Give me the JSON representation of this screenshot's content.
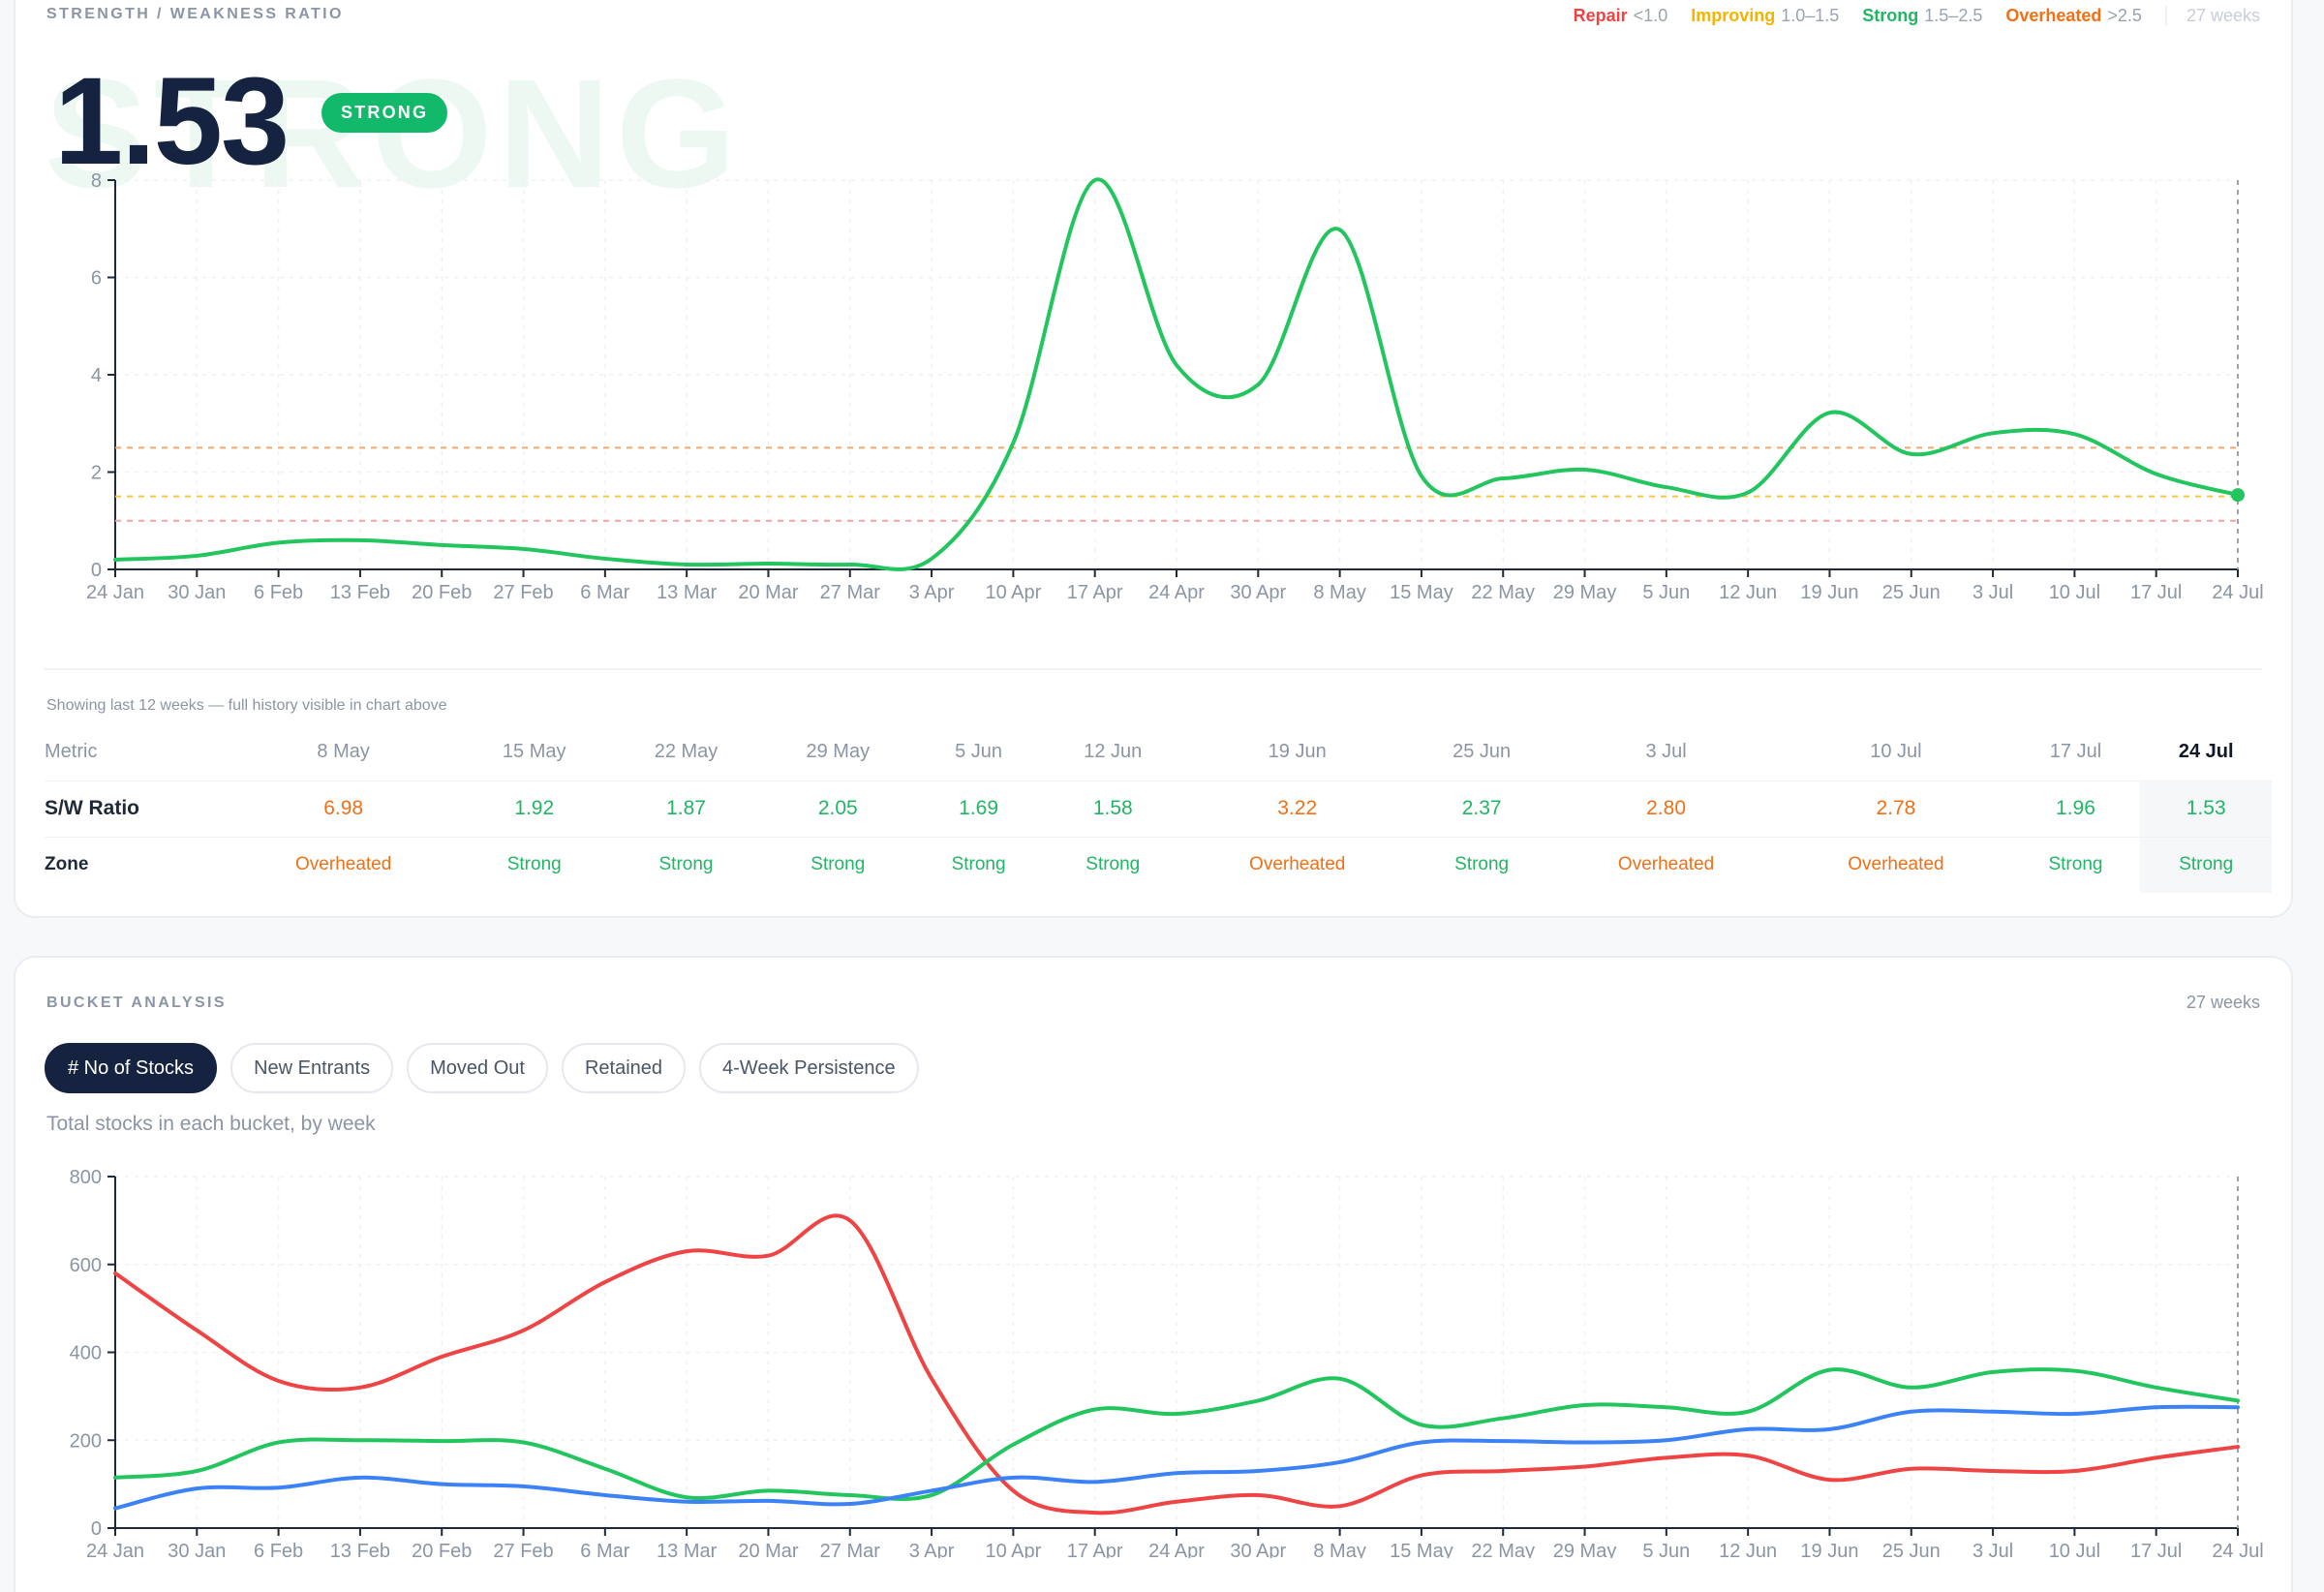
{
  "ratio_card": {
    "section_label": "STRENGTH / WEAKNESS RATIO",
    "legend": [
      {
        "name": "Repair",
        "range": "<1.0",
        "color": "#ef4444"
      },
      {
        "name": "Improving",
        "range": "1.0–1.5",
        "color": "#f5b301"
      },
      {
        "name": "Strong",
        "range": "1.5–2.5",
        "color": "#22b566"
      },
      {
        "name": "Overheated",
        "range": ">2.5",
        "color": "#f07017"
      }
    ],
    "weeks_label": "27 weeks",
    "ghost_text": "STRONG",
    "value": "1.53",
    "badge": "STRONG",
    "history_note": "Showing last 12 weeks — full history visible in chart above",
    "table": {
      "metric_header": "Metric",
      "ratio_label": "S/W Ratio",
      "zone_label": "Zone",
      "columns": [
        {
          "week": "8 May",
          "ratio": "6.98",
          "zone": "Overheated"
        },
        {
          "week": "15 May",
          "ratio": "1.92",
          "zone": "Strong"
        },
        {
          "week": "22 May",
          "ratio": "1.87",
          "zone": "Strong"
        },
        {
          "week": "29 May",
          "ratio": "2.05",
          "zone": "Strong"
        },
        {
          "week": "5 Jun",
          "ratio": "1.69",
          "zone": "Strong"
        },
        {
          "week": "12 Jun",
          "ratio": "1.58",
          "zone": "Strong"
        },
        {
          "week": "19 Jun",
          "ratio": "3.22",
          "zone": "Overheated"
        },
        {
          "week": "25 Jun",
          "ratio": "2.37",
          "zone": "Strong"
        },
        {
          "week": "3 Jul",
          "ratio": "2.80",
          "zone": "Overheated"
        },
        {
          "week": "10 Jul",
          "ratio": "2.78",
          "zone": "Overheated"
        },
        {
          "week": "17 Jul",
          "ratio": "1.96",
          "zone": "Strong"
        },
        {
          "week": "24 Jul",
          "ratio": "1.53",
          "zone": "Strong"
        }
      ]
    }
  },
  "bucket_card": {
    "section_label": "BUCKET ANALYSIS",
    "weeks_label": "27 weeks",
    "tabs": [
      "# No of Stocks",
      "New Entrants",
      "Moved Out",
      "Retained",
      "4-Week Persistence"
    ],
    "active_tab": "# No of Stocks",
    "subtitle": "Total stocks in each bucket, by week"
  },
  "chart_data": [
    {
      "type": "line",
      "title": "",
      "xlabel": "",
      "ylabel": "",
      "ylim": [
        0,
        8
      ],
      "yticks": [
        0,
        2,
        4,
        6,
        8
      ],
      "grid": true,
      "x": [
        "24 Jan",
        "30 Jan",
        "6 Feb",
        "13 Feb",
        "20 Feb",
        "27 Feb",
        "6 Mar",
        "13 Mar",
        "20 Mar",
        "27 Mar",
        "3 Apr",
        "10 Apr",
        "17 Apr",
        "24 Apr",
        "30 Apr",
        "8 May",
        "15 May",
        "22 May",
        "29 May",
        "5 Jun",
        "12 Jun",
        "19 Jun",
        "25 Jun",
        "3 Jul",
        "10 Jul",
        "17 Jul",
        "24 Jul"
      ],
      "series": [
        {
          "color": "#22c55e",
          "values": [
            0.2,
            0.28,
            0.55,
            0.6,
            0.5,
            0.42,
            0.22,
            0.1,
            0.12,
            0.1,
            0.22,
            2.6,
            8.0,
            4.2,
            3.8,
            6.98,
            1.92,
            1.87,
            2.05,
            1.69,
            1.58,
            3.22,
            2.37,
            2.8,
            2.78,
            1.96,
            1.53
          ]
        }
      ],
      "thresholds": [
        {
          "value": 1.0,
          "color": "#f4a3a3"
        },
        {
          "value": 1.5,
          "color": "#f5c843"
        },
        {
          "value": 2.5,
          "color": "#f5a86b"
        }
      ]
    },
    {
      "type": "line",
      "title": "",
      "xlabel": "",
      "ylabel": "",
      "ylim": [
        0,
        800
      ],
      "yticks": [
        0,
        200,
        400,
        600,
        800
      ],
      "grid": true,
      "x": [
        "24 Jan",
        "30 Jan",
        "6 Feb",
        "13 Feb",
        "20 Feb",
        "27 Feb",
        "6 Mar",
        "13 Mar",
        "20 Mar",
        "27 Mar",
        "3 Apr",
        "10 Apr",
        "17 Apr",
        "24 Apr",
        "30 Apr",
        "8 May",
        "15 May",
        "22 May",
        "29 May",
        "5 Jun",
        "12 Jun",
        "19 Jun",
        "25 Jun",
        "3 Jul",
        "10 Jul",
        "17 Jul",
        "24 Jul"
      ],
      "series": [
        {
          "color": "#ef4444",
          "values": [
            580,
            450,
            335,
            320,
            390,
            450,
            560,
            630,
            620,
            700,
            340,
            85,
            35,
            60,
            75,
            50,
            120,
            130,
            140,
            160,
            165,
            110,
            135,
            130,
            130,
            160,
            185
          ]
        },
        {
          "color": "#22c55e",
          "values": [
            115,
            130,
            195,
            200,
            198,
            195,
            135,
            70,
            85,
            75,
            75,
            190,
            270,
            260,
            290,
            340,
            235,
            250,
            280,
            275,
            265,
            360,
            320,
            355,
            358,
            320,
            290
          ]
        },
        {
          "color": "#3b82f6",
          "values": [
            45,
            90,
            92,
            115,
            100,
            95,
            75,
            60,
            62,
            55,
            85,
            115,
            105,
            125,
            130,
            150,
            195,
            198,
            195,
            200,
            225,
            225,
            265,
            265,
            260,
            275,
            275
          ]
        }
      ]
    }
  ]
}
